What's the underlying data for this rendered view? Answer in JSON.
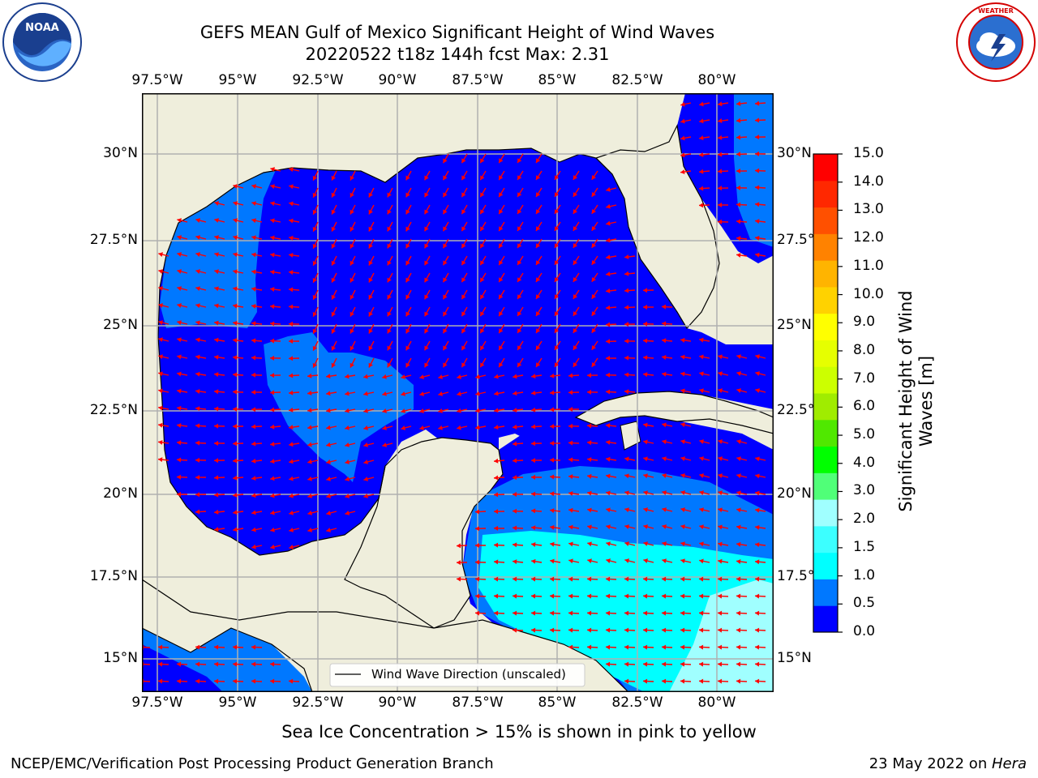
{
  "header": {
    "title_line1": "GEFS MEAN Gulf of Mexico Significant Height of Wind Waves",
    "title_line2": "20220522 t18z 144h fcst   Max: 2.31"
  },
  "logos": {
    "left": {
      "name": "noaa-logo",
      "text": "NOAA",
      "ring_text": "NATIONAL OCEANIC AND ATMOSPHERIC ADMINISTRATION · U.S. DEPARTMENT OF COMMERCE"
    },
    "right": {
      "name": "nws-logo",
      "ring_text": "NATIONAL WEATHER SERVICE"
    }
  },
  "map": {
    "lon_ticks": [
      "97.5°W",
      "95°W",
      "92.5°W",
      "90°W",
      "87.5°W",
      "85°W",
      "82.5°W",
      "80°W"
    ],
    "lat_ticks": [
      "30°N",
      "27.5°N",
      "25°N",
      "22.5°N",
      "20°N",
      "17.5°N",
      "15°N"
    ],
    "lat_ticks_right": [
      "30°N",
      "27.5°N",
      "25°N",
      "22.5°N",
      "20°N",
      "17.5°N",
      "15°N"
    ],
    "colors": {
      "land": "#efeedc",
      "grid": "#b0b0b0",
      "arrow": "#ff0000",
      "coast": "#000000"
    },
    "legend_label": "Wind Wave Direction (unscaled)"
  },
  "colorbar": {
    "label_line1": "Significant Height of Wind",
    "label_line2": "Waves [m]",
    "ticks": [
      "0.0",
      "0.5",
      "1.0",
      "1.5",
      "2.0",
      "3.0",
      "4.0",
      "5.0",
      "6.0",
      "7.0",
      "8.0",
      "9.0",
      "10.0",
      "11.0",
      "12.0",
      "13.0",
      "14.0",
      "15.0"
    ],
    "colors": [
      "#0000ff",
      "#0078ff",
      "#00ffff",
      "#3cffff",
      "#a0ffff",
      "#50ff78",
      "#00ff00",
      "#50e800",
      "#a0ec00",
      "#ccff00",
      "#e6ff00",
      "#ffff00",
      "#ffd200",
      "#ffb400",
      "#ff8200",
      "#ff5000",
      "#ff2800",
      "#ff0000"
    ]
  },
  "note": "Sea Ice Concentration > 15% is shown in pink to yellow",
  "footer": {
    "left": "NCEP/EMC/Verification Post Processing Product Generation Branch",
    "date": "23 May 2022 on ",
    "machine": "Hera"
  }
}
